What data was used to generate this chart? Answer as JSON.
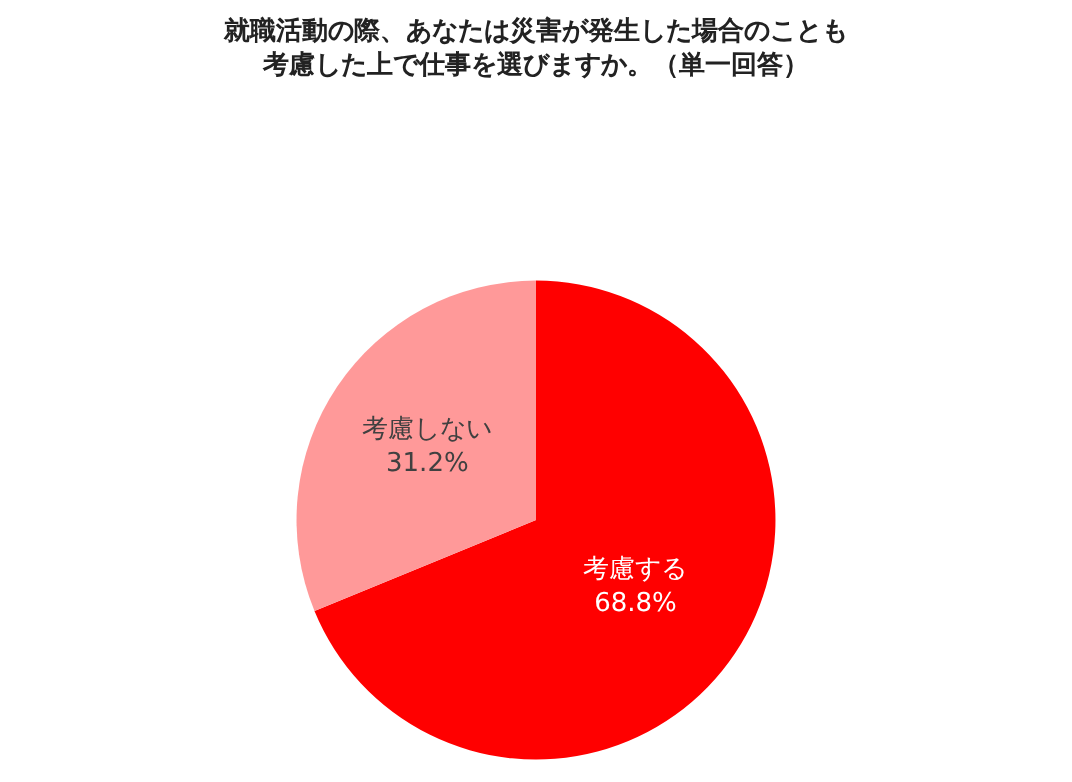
{
  "chart_data": {
    "type": "pie",
    "title": "就職活動の際、あなたは災害が発生した場合のことも",
    "subtitle": "考慮した上で仕事を選びますか。（単一回答）",
    "categories": [
      "考慮する",
      "考慮しない"
    ],
    "values": [
      68.8,
      31.2
    ],
    "colors": [
      "#ff0000",
      "#ff9999"
    ],
    "value_labels": [
      "68.8%",
      "31.2%"
    ],
    "legend": false
  }
}
